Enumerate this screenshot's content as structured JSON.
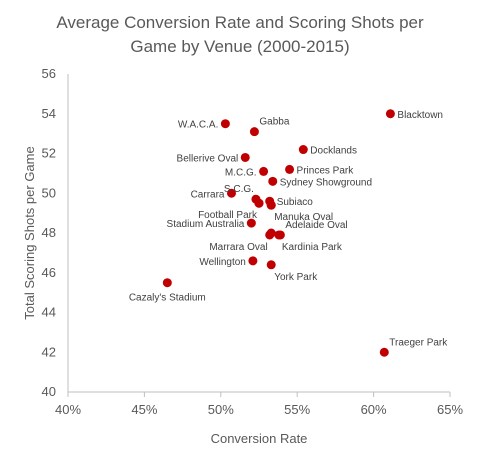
{
  "chart_data": {
    "type": "scatter",
    "title_lines": [
      "Average Conversion Rate and Scoring Shots per",
      "Game by Venue (2000-2015)"
    ],
    "xlabel": "Conversion Rate",
    "ylabel": "Total Scoring Shots per Game",
    "xlim": [
      0.4,
      0.65
    ],
    "ylim": [
      40,
      56
    ],
    "x_ticks": [
      0.4,
      0.45,
      0.5,
      0.55,
      0.6,
      0.65
    ],
    "x_tick_labels": [
      "40%",
      "45%",
      "50%",
      "55%",
      "60%",
      "65%"
    ],
    "y_ticks": [
      40,
      42,
      44,
      46,
      48,
      50,
      52,
      54,
      56
    ],
    "y_tick_labels": [
      "40",
      "42",
      "44",
      "46",
      "48",
      "50",
      "52",
      "54",
      "56"
    ],
    "grid": false,
    "legend": "none",
    "marker_color": "#C00000",
    "points": [
      {
        "label": "Blacktown",
        "x": 0.611,
        "y": 54.0,
        "label_side": "right"
      },
      {
        "label": "W.A.C.A.",
        "x": 0.503,
        "y": 53.5,
        "label_side": "left"
      },
      {
        "label": "Gabba",
        "x": 0.522,
        "y": 53.1,
        "label_side": "above-right"
      },
      {
        "label": "Docklands",
        "x": 0.554,
        "y": 52.2,
        "label_side": "right"
      },
      {
        "label": "Bellerive Oval",
        "x": 0.516,
        "y": 51.8,
        "label_side": "left"
      },
      {
        "label": "M.C.G.",
        "x": 0.528,
        "y": 51.1,
        "label_side": "left"
      },
      {
        "label": "Princes Park",
        "x": 0.545,
        "y": 51.2,
        "label_side": "right"
      },
      {
        "label": "Sydney Showground",
        "x": 0.534,
        "y": 50.6,
        "label_side": "right"
      },
      {
        "label": "Carrara",
        "x": 0.507,
        "y": 50.0,
        "label_side": "left"
      },
      {
        "label": "S.C.G.",
        "x": 0.523,
        "y": 49.7,
        "label_side": "above-left"
      },
      {
        "label": "Subiaco",
        "x": 0.532,
        "y": 49.6,
        "label_side": "right"
      },
      {
        "label": "",
        "x": 0.525,
        "y": 49.5,
        "label_side": "none"
      },
      {
        "label": "",
        "x": 0.533,
        "y": 49.4,
        "label_side": "none"
      },
      {
        "label": "Football Park",
        "x": 0.525,
        "y": 49.5,
        "label_side": "below-left"
      },
      {
        "label": "Manuka Oval",
        "x": 0.533,
        "y": 49.4,
        "label_side": "below-right"
      },
      {
        "label": "Stadium Australia",
        "x": 0.52,
        "y": 48.5,
        "label_side": "left"
      },
      {
        "label": "Adelaide Oval",
        "x": 0.539,
        "y": 47.9,
        "label_side": "above-right"
      },
      {
        "label": "Kardinia Park",
        "x": 0.538,
        "y": 47.9,
        "label_side": "below-right"
      },
      {
        "label": "Marrara Oval",
        "x": 0.532,
        "y": 47.9,
        "label_side": "below-left"
      },
      {
        "label": "",
        "x": 0.533,
        "y": 48.0,
        "label_side": "none"
      },
      {
        "label": "Wellington",
        "x": 0.521,
        "y": 46.6,
        "label_side": "left"
      },
      {
        "label": "York Park",
        "x": 0.533,
        "y": 46.4,
        "label_side": "below-right"
      },
      {
        "label": "Cazaly's Stadium",
        "x": 0.465,
        "y": 45.5,
        "label_side": "below"
      },
      {
        "label": "Traeger Park",
        "x": 0.607,
        "y": 42.0,
        "label_side": "above-right"
      }
    ]
  }
}
